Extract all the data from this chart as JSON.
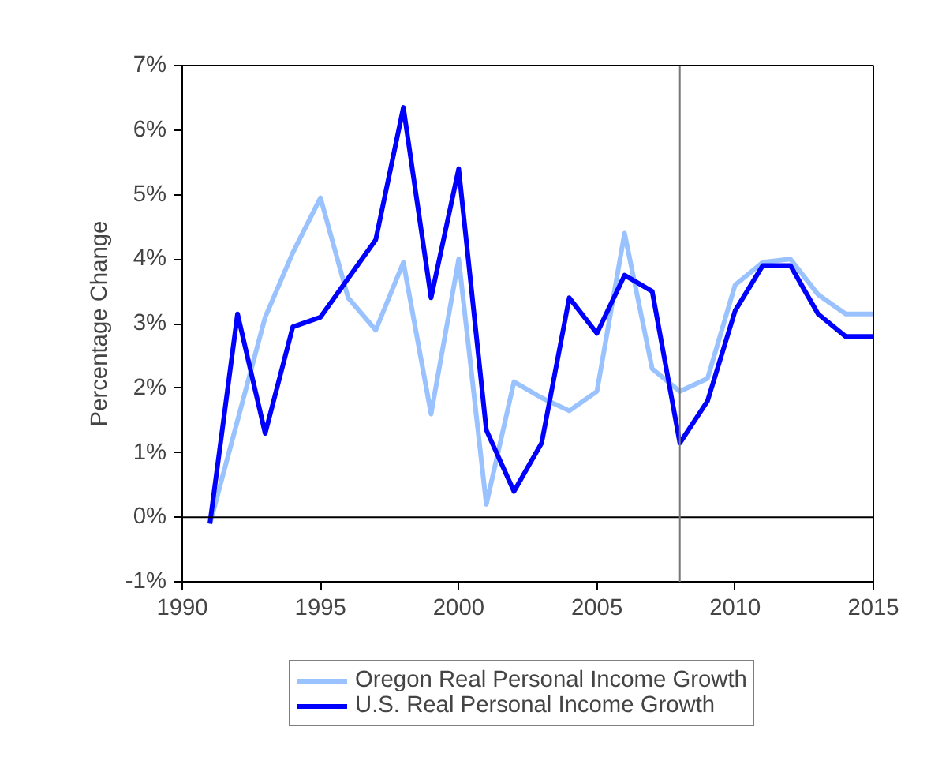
{
  "chart_data": {
    "type": "line",
    "ylabel": "Percentage Change",
    "x": [
      1991,
      1992,
      1993,
      1994,
      1995,
      1996,
      1997,
      1998,
      1999,
      2000,
      2001,
      2002,
      2003,
      2004,
      2005,
      2006,
      2007,
      2008,
      2009,
      2010,
      2011,
      2012,
      2013,
      2014,
      2015
    ],
    "series": [
      {
        "name": "Oregon Real Personal Income Growth",
        "color": "#99c2ff",
        "values": [
          -0.1,
          1.5,
          3.1,
          4.1,
          4.95,
          3.4,
          2.9,
          3.95,
          1.6,
          4.0,
          0.2,
          2.1,
          1.85,
          1.65,
          1.95,
          4.4,
          2.3,
          1.95,
          2.15,
          3.6,
          3.95,
          4.0,
          3.45,
          3.15,
          3.15
        ]
      },
      {
        "name": "U.S. Real Personal Income Growth",
        "color": "#0000ff",
        "values": [
          -0.1,
          3.15,
          1.3,
          2.95,
          3.1,
          3.7,
          4.3,
          6.35,
          3.4,
          5.4,
          1.35,
          0.4,
          1.15,
          3.4,
          2.85,
          3.75,
          3.5,
          1.15,
          1.8,
          3.2,
          3.9,
          3.9,
          3.15,
          2.8,
          2.8
        ]
      }
    ],
    "xlim": [
      1990,
      2015
    ],
    "xticks": [
      1990,
      1995,
      2000,
      2005,
      2010,
      2015
    ],
    "ylim": [
      -1,
      7
    ],
    "yticks": [
      {
        "value": -1,
        "label": "-1%"
      },
      {
        "value": 0,
        "label": "0%"
      },
      {
        "value": 1,
        "label": "1%"
      },
      {
        "value": 2,
        "label": "2%"
      },
      {
        "value": 3,
        "label": "3%"
      },
      {
        "value": 4,
        "label": "4%"
      },
      {
        "value": 5,
        "label": "5%"
      },
      {
        "value": 6,
        "label": "6%"
      },
      {
        "value": 7,
        "label": "7%"
      }
    ],
    "ref_lines": [
      {
        "axis": "y",
        "value": 0,
        "color": "#000000"
      },
      {
        "axis": "x",
        "value": 2008,
        "color": "#777777"
      }
    ],
    "grid": false,
    "legend": "bottom",
    "line_style": "solid"
  }
}
